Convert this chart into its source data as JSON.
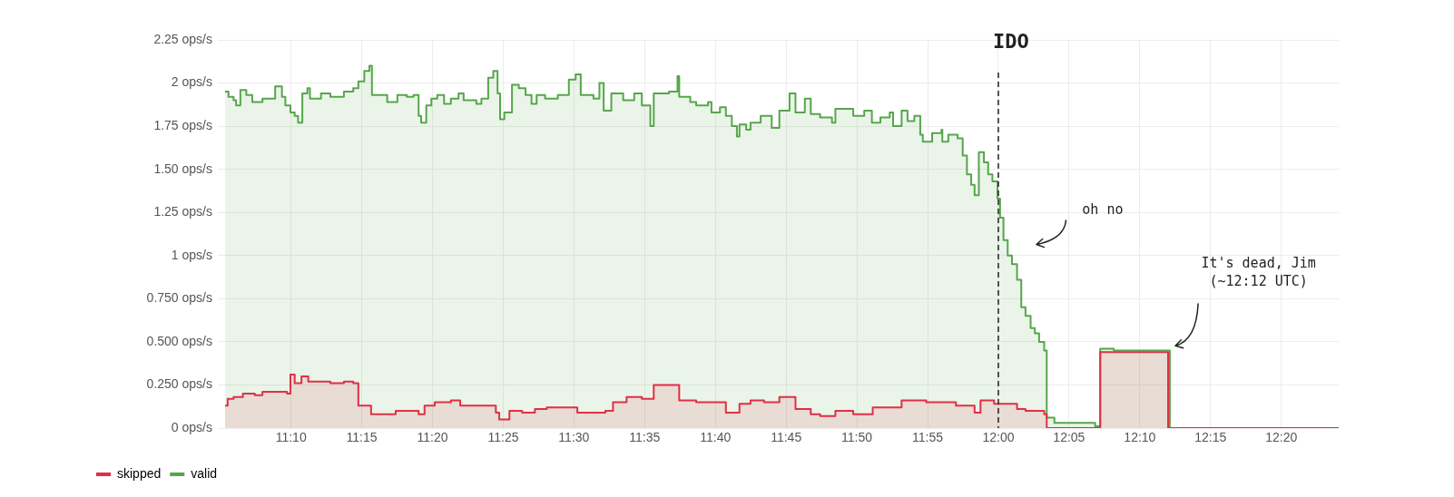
{
  "chart_data": {
    "type": "step",
    "xlim": [
      11.089,
      12.401
    ],
    "xticks": [
      {
        "value": 11.1667,
        "label": "11:10"
      },
      {
        "value": 11.25,
        "label": "11:15"
      },
      {
        "value": 11.3333,
        "label": "11:20"
      },
      {
        "value": 11.4167,
        "label": "11:25"
      },
      {
        "value": 11.5,
        "label": "11:30"
      },
      {
        "value": 11.5833,
        "label": "11:35"
      },
      {
        "value": 11.6667,
        "label": "11:40"
      },
      {
        "value": 11.75,
        "label": "11:45"
      },
      {
        "value": 11.8333,
        "label": "11:50"
      },
      {
        "value": 11.9167,
        "label": "11:55"
      },
      {
        "value": 12,
        "label": "12:00"
      },
      {
        "value": 12.0833,
        "label": "12:05"
      },
      {
        "value": 12.1667,
        "label": "12:10"
      },
      {
        "value": 12.25,
        "label": "12:15"
      },
      {
        "value": 12.3333,
        "label": "12:20"
      }
    ],
    "ylim": [
      0,
      2.25
    ],
    "yticks": [
      {
        "value": 0,
        "label": "0 ops/s"
      },
      {
        "value": 0.25,
        "label": "0.250 ops/s"
      },
      {
        "value": 0.5,
        "label": "0.500 ops/s"
      },
      {
        "value": 0.75,
        "label": "0.750 ops/s"
      },
      {
        "value": 1,
        "label": "1 ops/s"
      },
      {
        "value": 1.25,
        "label": "1.25 ops/s"
      },
      {
        "value": 1.5,
        "label": "1.50 ops/s"
      },
      {
        "value": 1.75,
        "label": "1.75 ops/s"
      },
      {
        "value": 2,
        "label": "2 ops/s"
      },
      {
        "value": 2.25,
        "label": "2.25 ops/s"
      }
    ],
    "grid": true,
    "legend": "bottom left",
    "marker": "none",
    "line_style": "solid",
    "series": [
      {
        "name": "skipped",
        "color": "#e02f44",
        "x": [
          11.089,
          11.092,
          11.099,
          11.11,
          11.124,
          11.133,
          11.162,
          11.166,
          11.171,
          11.179,
          11.187,
          11.213,
          11.229,
          11.24,
          11.246,
          11.261,
          11.29,
          11.317,
          11.324,
          11.336,
          11.355,
          11.366,
          11.393,
          11.408,
          11.412,
          11.424,
          11.439,
          11.454,
          11.468,
          11.496,
          11.504,
          11.537,
          11.546,
          11.562,
          11.58,
          11.594,
          11.615,
          11.624,
          11.644,
          11.679,
          11.695,
          11.708,
          11.724,
          11.742,
          11.761,
          11.779,
          11.79,
          11.808,
          11.829,
          11.852,
          11.886,
          11.915,
          11.95,
          11.972,
          11.979,
          11.995,
          12.022,
          12.032,
          12.054,
          12.057,
          12.12,
          12.2,
          12.401
        ],
        "values": [
          0.13,
          0.17,
          0.18,
          0.2,
          0.19,
          0.21,
          0.2,
          0.31,
          0.26,
          0.3,
          0.27,
          0.26,
          0.27,
          0.26,
          0.13,
          0.08,
          0.1,
          0.08,
          0.13,
          0.15,
          0.16,
          0.13,
          0.13,
          0.09,
          0.05,
          0.1,
          0.09,
          0.11,
          0.12,
          0.12,
          0.09,
          0.1,
          0.15,
          0.18,
          0.17,
          0.25,
          0.25,
          0.16,
          0.15,
          0.09,
          0.14,
          0.16,
          0.15,
          0.18,
          0.11,
          0.08,
          0.07,
          0.1,
          0.08,
          0.12,
          0.16,
          0.15,
          0.13,
          0.09,
          0.16,
          0.14,
          0.11,
          0.1,
          0.08,
          0,
          0.44,
          0,
          0
        ]
      },
      {
        "name": "valid",
        "color": "#56a64b",
        "x": [
          11.089,
          11.093,
          11.099,
          11.102,
          11.107,
          11.114,
          11.121,
          11.133,
          11.143,
          11.148,
          11.156,
          11.16,
          11.166,
          11.171,
          11.175,
          11.18,
          11.186,
          11.189,
          11.202,
          11.213,
          11.229,
          11.24,
          11.246,
          11.253,
          11.259,
          11.262,
          11.274,
          11.28,
          11.292,
          11.303,
          11.311,
          11.317,
          11.32,
          11.326,
          11.332,
          11.339,
          11.347,
          11.355,
          11.364,
          11.37,
          11.385,
          11.391,
          11.399,
          11.405,
          11.41,
          11.413,
          11.418,
          11.427,
          11.435,
          11.443,
          11.45,
          11.456,
          11.466,
          11.481,
          11.494,
          11.502,
          11.508,
          11.523,
          11.53,
          11.535,
          11.544,
          11.558,
          11.571,
          11.58,
          11.59,
          11.594,
          11.612,
          11.622,
          11.624,
          11.637,
          11.644,
          11.658,
          11.662,
          11.672,
          11.679,
          11.686,
          11.692,
          11.695,
          11.703,
          11.708,
          11.72,
          11.733,
          11.742,
          11.754,
          11.761,
          11.772,
          11.779,
          11.79,
          11.804,
          11.808,
          11.829,
          11.842,
          11.851,
          11.861,
          11.872,
          11.876,
          11.886,
          11.893,
          11.901,
          11.908,
          11.911,
          11.922,
          11.933,
          11.934,
          11.941,
          11.952,
          11.958,
          11.963,
          11.968,
          11.972,
          11.977,
          11.983,
          11.988,
          11.993,
          11.999,
          12.002,
          12.006,
          12.011,
          12.016,
          12.022,
          12.027,
          12.032,
          12.038,
          12.043,
          12.048,
          12.054,
          12.057,
          12.066,
          12.114,
          12.12,
          12.136,
          12.202,
          12.401
        ],
        "values": [
          1.95,
          1.92,
          1.9,
          1.87,
          1.96,
          1.93,
          1.89,
          1.91,
          1.91,
          1.98,
          1.92,
          1.87,
          1.83,
          1.81,
          1.77,
          1.94,
          1.97,
          1.91,
          1.94,
          1.92,
          1.95,
          1.97,
          2.01,
          2.07,
          2.1,
          1.93,
          1.93,
          1.89,
          1.93,
          1.92,
          1.93,
          1.81,
          1.77,
          1.87,
          1.91,
          1.93,
          1.88,
          1.91,
          1.94,
          1.9,
          1.88,
          1.91,
          2.03,
          2.07,
          1.94,
          1.79,
          1.83,
          1.99,
          1.97,
          1.93,
          1.88,
          1.93,
          1.91,
          1.93,
          2.02,
          2.05,
          1.93,
          1.91,
          2.0,
          1.84,
          1.94,
          1.9,
          1.94,
          1.87,
          1.75,
          1.94,
          1.95,
          2.04,
          1.92,
          1.89,
          1.87,
          1.89,
          1.83,
          1.86,
          1.81,
          1.75,
          1.69,
          1.76,
          1.73,
          1.77,
          1.81,
          1.74,
          1.84,
          1.94,
          1.83,
          1.91,
          1.82,
          1.8,
          1.77,
          1.85,
          1.81,
          1.84,
          1.77,
          1.8,
          1.83,
          1.75,
          1.84,
          1.78,
          1.81,
          1.7,
          1.66,
          1.71,
          1.73,
          1.66,
          1.7,
          1.68,
          1.58,
          1.47,
          1.41,
          1.35,
          1.6,
          1.54,
          1.47,
          1.43,
          1.33,
          1.22,
          1.09,
          1.0,
          0.95,
          0.86,
          0.7,
          0.65,
          0.58,
          0.55,
          0.5,
          0.45,
          0.06,
          0.03,
          0.01,
          0.46,
          0.45,
          0,
          0
        ]
      }
    ],
    "ref_lines": [
      {
        "axis": "x",
        "value": 12,
        "label": "IDO",
        "color": "#222222",
        "line_style": "dashed"
      }
    ],
    "annotations": [
      "oh no",
      "It's dead, Jim\n(~12:12 UTC)"
    ]
  }
}
